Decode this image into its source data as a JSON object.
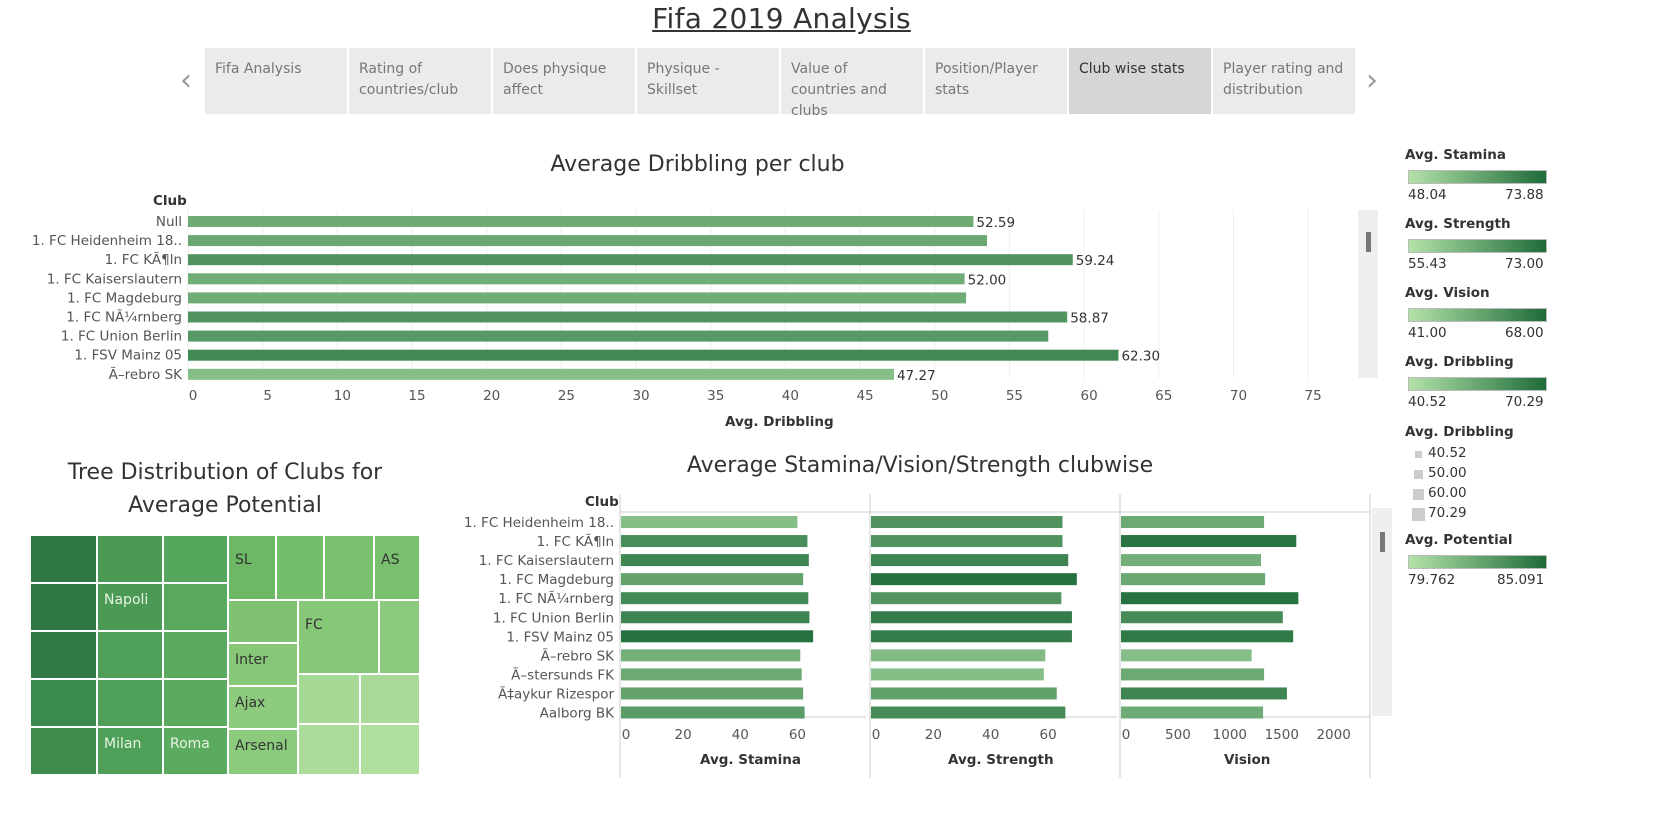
{
  "page_title": "Fifa 2019 Analysis",
  "nav": {
    "prev_icon": "chevron-left-icon",
    "next_icon": "chevron-right-icon",
    "tabs": [
      {
        "label": "Fifa Analysis",
        "active": false
      },
      {
        "label": "Rating of countries/club",
        "active": false
      },
      {
        "label": "Does physique affect",
        "active": false
      },
      {
        "label": "Physique - Skillset",
        "active": false
      },
      {
        "label": "Value of countries and clubs",
        "active": false
      },
      {
        "label": "Position/Player stats",
        "active": false
      },
      {
        "label": "Club wise stats",
        "active": true
      },
      {
        "label": "Player rating and distribution",
        "active": false
      }
    ]
  },
  "dribbling_chart": {
    "title": "Average Dribbling per club",
    "row_header": "Club",
    "xlabel": "Avg. Dribbling"
  },
  "treemap": {
    "title": "Tree Distribution of Clubs for Average Potential",
    "labels": [
      "Napoli",
      "Milan",
      "Roma",
      "SL",
      "AS",
      "FC",
      "Inter",
      "Ajax",
      "Arsenal"
    ]
  },
  "multi_chart": {
    "title": "Average Stamina/Vision/Strength clubwise",
    "row_header": "Club",
    "panel_labels": [
      "Avg. Stamina",
      "Avg. Strength",
      "Vision"
    ]
  },
  "legends": {
    "stamina": {
      "title": "Avg. Stamina",
      "min": "48.04",
      "max": "73.88"
    },
    "strength": {
      "title": "Avg. Strength",
      "min": "55.43",
      "max": "73.00"
    },
    "vision": {
      "title": "Avg. Vision",
      "min": "41.00",
      "max": "68.00"
    },
    "dribbling": {
      "title": "Avg. Dribbling",
      "min": "40.52",
      "max": "70.29"
    },
    "dribbling_size": {
      "title": "Avg. Dribbling",
      "items": [
        "40.52",
        "50.00",
        "60.00",
        "70.29"
      ]
    },
    "potential": {
      "title": "Avg. Potential",
      "min": "79.762",
      "max": "85.091"
    }
  },
  "colors": {
    "light_green": "#b3e2a8",
    "dark_green": "#1e6b3a",
    "tab_active": "#d6d6d6",
    "tab": "#ebebeb"
  },
  "chart_data": [
    {
      "type": "bar",
      "title": "Average Dribbling per club",
      "xlabel": "Avg. Dribbling",
      "ylabel": "Club",
      "xlim": [
        0,
        77
      ],
      "ticks": [
        0,
        5,
        10,
        15,
        20,
        25,
        30,
        35,
        40,
        45,
        50,
        55,
        60,
        65,
        70,
        75
      ],
      "categories": [
        "Null",
        "1. FC Heidenheim 18..",
        "1. FC KÃ¶ln",
        "1. FC Kaiserslautern",
        "1. FC Magdeburg",
        "1. FC NÃ¼rnberg",
        "1. FC Union Berlin",
        "1. FSV Mainz 05",
        "Ã–rebro SK"
      ],
      "values": [
        52.59,
        53.5,
        59.24,
        52.0,
        52.1,
        58.87,
        57.6,
        62.3,
        47.27
      ],
      "data_labels": [
        "52.59",
        "",
        "59.24",
        "52.00",
        "",
        "58.87",
        "",
        "62.30",
        "47.27"
      ]
    },
    {
      "type": "bar",
      "title": "Average Stamina/Vision/Strength clubwise",
      "ylabel": "Club",
      "categories": [
        "1. FC Heidenheim 18..",
        "1. FC KÃ¶ln",
        "1. FC Kaiserslautern",
        "1. FC Magdeburg",
        "1. FC NÃ¼rnberg",
        "1. FC Union Berlin",
        "1. FSV Mainz 05",
        "Ã–rebro SK",
        "Ã–stersunds FK",
        "Ã‡aykur Rizespor",
        "Aalborg BK"
      ],
      "panels": [
        {
          "name": "Avg. Stamina",
          "xlim": [
            0,
            84
          ],
          "ticks": [
            0,
            20,
            40,
            60
          ],
          "values": [
            60,
            63.5,
            64,
            62,
            63.8,
            64.2,
            65.5,
            61,
            61.5,
            62,
            62.5
          ]
        },
        {
          "name": "Avg. Strength",
          "xlim": [
            0,
            84
          ],
          "ticks": [
            0,
            20,
            40,
            60
          ],
          "values": [
            65,
            65,
            67,
            70,
            64.6,
            68.3,
            68.3,
            59,
            58.5,
            63,
            66
          ]
        },
        {
          "name": "Vision",
          "xlim": [
            0,
            2350
          ],
          "ticks": [
            0,
            500,
            1000,
            1500,
            2000
          ],
          "values": [
            1330,
            1640,
            1300,
            1340,
            1660,
            1510,
            1610,
            1210,
            1330,
            1550,
            1320
          ]
        }
      ]
    }
  ]
}
